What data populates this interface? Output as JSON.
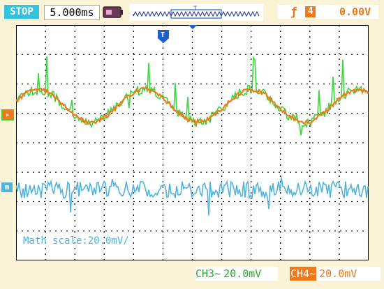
{
  "header": {
    "run_state": "STOP",
    "timebase": "5.000ms",
    "trigger": {
      "edge_symbol": "ƒ",
      "source": "4",
      "level": "0.00V"
    },
    "memory_marker": "T"
  },
  "screen": {
    "trigger_marker": "T",
    "ch_marker_left": "▸",
    "math_marker": "m",
    "math_scale": "Math scale:20.0mV/"
  },
  "channels": {
    "ch3": {
      "tag": "CH3~",
      "scale": "20.0mV"
    },
    "ch4": {
      "tag": "CH4~",
      "scale": "20.0mV"
    }
  },
  "colors": {
    "status_bg": "#33c3de",
    "ch3": "#37d63a",
    "ch4": "#f07a1a",
    "math": "#4fb3de",
    "frame": "#fbf3d6",
    "grid": "#000000"
  },
  "waveforms": {
    "sine_periods": 3.3,
    "sine_amplitude_div": 0.55
  }
}
